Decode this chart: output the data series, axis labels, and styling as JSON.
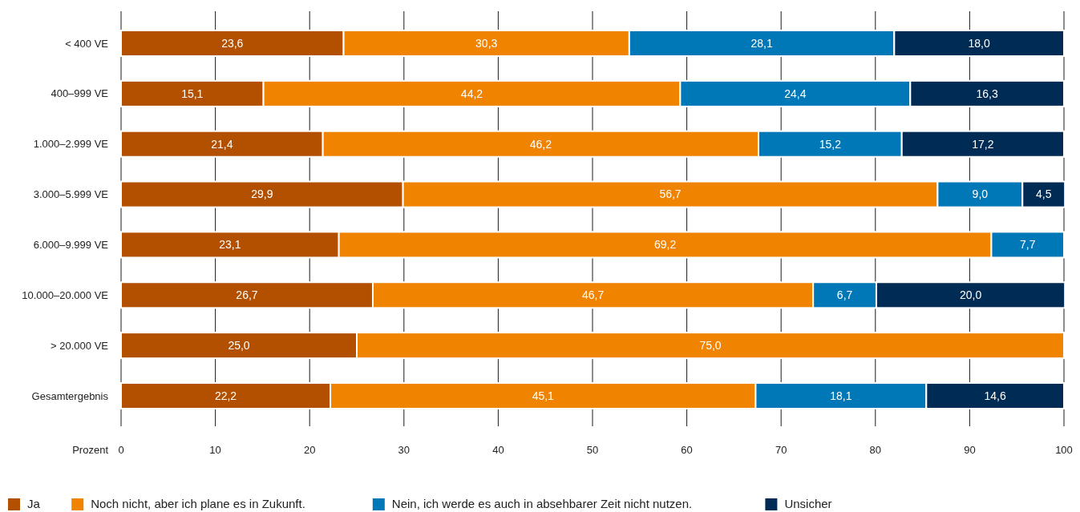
{
  "chart_data": {
    "type": "bar",
    "orientation": "horizontal",
    "stacked": true,
    "xlabel": "Prozent",
    "categories": [
      "< 400 VE",
      "400–999 VE",
      "1.000–2.999 VE",
      "3.000–5.999 VE",
      "6.000–9.999 VE",
      "10.000–20.000 VE",
      "> 20.000 VE",
      "Gesamtergebnis"
    ],
    "series": [
      {
        "name": "Ja",
        "color": "#b35000",
        "values": [
          23.6,
          15.1,
          21.4,
          29.9,
          23.1,
          26.7,
          25.0,
          22.2
        ],
        "value_labels": [
          "23,6",
          "15,1",
          "21,4",
          "29,9",
          "23,1",
          "26,7",
          "25,0",
          "22,2"
        ]
      },
      {
        "name": "Noch nicht, aber ich plane es in Zukunft.",
        "color": "#f08300",
        "values": [
          30.3,
          44.2,
          46.2,
          56.7,
          69.2,
          46.7,
          75.0,
          45.1
        ],
        "value_labels": [
          "30,3",
          "44,2",
          "46,2",
          "56,7",
          "69,2",
          "46,7",
          "75,0",
          "45,1"
        ]
      },
      {
        "name": "Nein, ich werde es auch in absehbarer Zeit nicht nutzen.",
        "color": "#0077b6",
        "values": [
          28.1,
          24.4,
          15.2,
          9.0,
          7.7,
          6.7,
          null,
          18.1
        ],
        "value_labels": [
          "28,1",
          "24,4",
          "15,2",
          "9,0",
          "7,7",
          "6,7",
          null,
          "18,1"
        ]
      },
      {
        "name": "Unsicher",
        "color": "#002b55",
        "values": [
          18.0,
          16.3,
          17.2,
          4.5,
          null,
          20.0,
          null,
          14.6
        ],
        "value_labels": [
          "18,0",
          "16,3",
          "17,2",
          "4,5",
          null,
          "20,0",
          null,
          "14,6"
        ]
      }
    ],
    "xlim": [
      0,
      100
    ],
    "xticks": [
      0,
      10,
      20,
      30,
      40,
      50,
      60,
      70,
      80,
      90,
      100
    ],
    "grid": "x",
    "legend": "bottom"
  }
}
